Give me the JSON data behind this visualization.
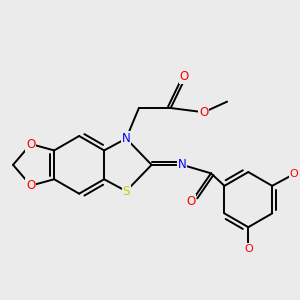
{
  "bg_color": "#ebebeb",
  "figsize": [
    3.0,
    3.0
  ],
  "dpi": 100,
  "atom_colors": {
    "O": "#ff0000",
    "N": "#0000ff",
    "S": "#cccc00",
    "C": "#000000"
  },
  "bond_color": "#000000",
  "bond_width": 1.4
}
